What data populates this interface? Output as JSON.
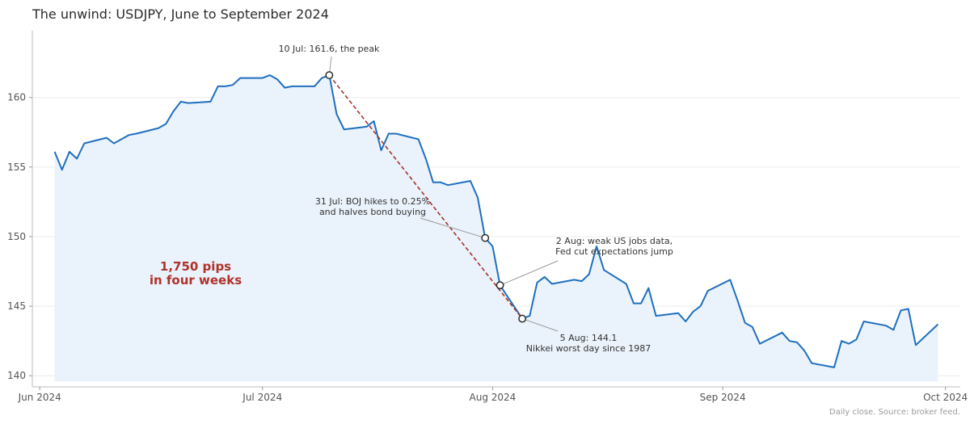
{
  "chart_data": {
    "type": "line",
    "title": "The unwind: USDJPY, June to September 2024",
    "xlabel": "",
    "ylabel": "",
    "footnote": "Daily close. Source: broker feed.",
    "xlim": [
      "2024-05-31",
      "2024-10-03"
    ],
    "ylim": [
      139.2,
      164.8
    ],
    "y_ticks": [
      140,
      145,
      150,
      155,
      160
    ],
    "x_ticks": [
      {
        "date": "2024-06-01",
        "label": "Jun 2024"
      },
      {
        "date": "2024-07-01",
        "label": "Jul 2024"
      },
      {
        "date": "2024-08-01",
        "label": "Aug 2024"
      },
      {
        "date": "2024-09-01",
        "label": "Sep 2024"
      },
      {
        "date": "2024-10-01",
        "label": "Oct 2024"
      }
    ],
    "grid": "horizontal",
    "colors": {
      "line": "#1f6fbf",
      "fill": "#eaf2fb",
      "trend": "#a83228",
      "callout": "#b0322a"
    },
    "series": [
      {
        "x": [
          "2024-06-03",
          "2024-06-04",
          "2024-06-05",
          "2024-06-06",
          "2024-06-07",
          "2024-06-10",
          "2024-06-11",
          "2024-06-12",
          "2024-06-13",
          "2024-06-14",
          "2024-06-17",
          "2024-06-18",
          "2024-06-19",
          "2024-06-20",
          "2024-06-21",
          "2024-06-24",
          "2024-06-25",
          "2024-06-26",
          "2024-06-27",
          "2024-06-28",
          "2024-07-01",
          "2024-07-02",
          "2024-07-03",
          "2024-07-04",
          "2024-07-05",
          "2024-07-08",
          "2024-07-09",
          "2024-07-10",
          "2024-07-11",
          "2024-07-12",
          "2024-07-15",
          "2024-07-16",
          "2024-07-17",
          "2024-07-18",
          "2024-07-19",
          "2024-07-22",
          "2024-07-23",
          "2024-07-24",
          "2024-07-25",
          "2024-07-26",
          "2024-07-29",
          "2024-07-30",
          "2024-07-31",
          "2024-08-01",
          "2024-08-02",
          "2024-08-05",
          "2024-08-06",
          "2024-08-07",
          "2024-08-08",
          "2024-08-09",
          "2024-08-12",
          "2024-08-13",
          "2024-08-14",
          "2024-08-15",
          "2024-08-16",
          "2024-08-19",
          "2024-08-20",
          "2024-08-21",
          "2024-08-22",
          "2024-08-23",
          "2024-08-26",
          "2024-08-27",
          "2024-08-28",
          "2024-08-29",
          "2024-08-30",
          "2024-09-02",
          "2024-09-03",
          "2024-09-04",
          "2024-09-05",
          "2024-09-06",
          "2024-09-09",
          "2024-09-10",
          "2024-09-11",
          "2024-09-12",
          "2024-09-13",
          "2024-09-16",
          "2024-09-17",
          "2024-09-18",
          "2024-09-19",
          "2024-09-20",
          "2024-09-23",
          "2024-09-24",
          "2024-09-25",
          "2024-09-26",
          "2024-09-27",
          "2024-09-30"
        ],
        "values": [
          156.1,
          154.8,
          156.1,
          155.6,
          156.7,
          157.1,
          156.7,
          157.0,
          157.3,
          157.4,
          157.8,
          158.1,
          159.0,
          159.7,
          159.6,
          159.7,
          160.8,
          160.8,
          160.9,
          161.4,
          161.4,
          161.6,
          161.3,
          160.7,
          160.8,
          160.8,
          161.4,
          161.6,
          158.8,
          157.7,
          157.9,
          158.3,
          156.2,
          157.4,
          157.4,
          157.0,
          155.6,
          153.9,
          153.9,
          153.7,
          154.0,
          152.8,
          149.9,
          149.3,
          146.5,
          144.1,
          144.3,
          146.7,
          147.1,
          146.6,
          146.9,
          146.8,
          147.3,
          149.3,
          147.6,
          146.6,
          145.2,
          145.2,
          146.3,
          144.3,
          144.5,
          143.9,
          144.6,
          145.0,
          146.1,
          146.9,
          145.4,
          143.8,
          143.5,
          142.3,
          143.1,
          142.5,
          142.4,
          141.8,
          140.9,
          140.6,
          142.5,
          142.3,
          142.6,
          143.9,
          143.6,
          143.3,
          144.7,
          144.8,
          142.2,
          143.7
        ]
      }
    ],
    "trend_line": {
      "from": {
        "x": "2024-07-10",
        "y": 161.6
      },
      "to": {
        "x": "2024-08-05",
        "y": 144.1
      }
    },
    "markers": [
      {
        "x": "2024-07-10",
        "y": 161.6
      },
      {
        "x": "2024-07-31",
        "y": 149.9
      },
      {
        "x": "2024-08-02",
        "y": 146.5
      },
      {
        "x": "2024-08-05",
        "y": 144.1
      }
    ],
    "annotations": [
      {
        "lines": [
          "10 Jul: 161.6, the peak"
        ],
        "target": {
          "x": "2024-07-10",
          "y": 161.6
        }
      },
      {
        "lines": [
          "31 Jul: BOJ hikes to 0.25%",
          "and halves bond buying"
        ],
        "target": {
          "x": "2024-07-31",
          "y": 149.9
        }
      },
      {
        "lines": [
          "2 Aug: weak US jobs data,",
          "Fed cut expectations jump"
        ],
        "target": {
          "x": "2024-08-02",
          "y": 146.5
        }
      },
      {
        "lines": [
          "5 Aug: 144.1",
          "Nikkei worst day since 1987"
        ],
        "target": {
          "x": "2024-08-05",
          "y": 144.1
        }
      }
    ],
    "callout": {
      "lines": [
        "1,750 pips",
        "in four weeks"
      ]
    }
  }
}
